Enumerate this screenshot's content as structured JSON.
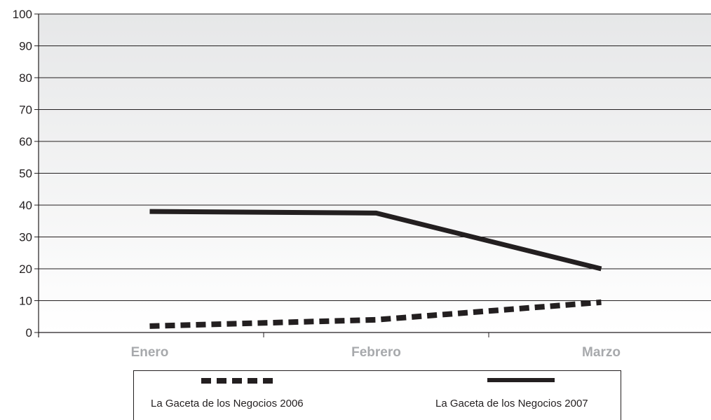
{
  "chart_data": {
    "type": "line",
    "categories": [
      "Enero",
      "Febrero",
      "Marzo"
    ],
    "ylim": [
      0,
      100
    ],
    "yticks": [
      "0",
      "10",
      "20",
      "30",
      "40",
      "50",
      "60",
      "70",
      "80",
      "90",
      "100"
    ],
    "grid": true,
    "legend_position": "bottom",
    "background": "gray-to-white gradient",
    "series": [
      {
        "name": "La Gaceta de los Negocios 2006",
        "values": [
          2,
          4,
          9.5
        ],
        "style": "dashed",
        "color": "#231f20"
      },
      {
        "name": "La Gaceta de los Negocios 2007",
        "values": [
          38,
          37.5,
          20
        ],
        "style": "solid",
        "color": "#231f20"
      }
    ]
  }
}
